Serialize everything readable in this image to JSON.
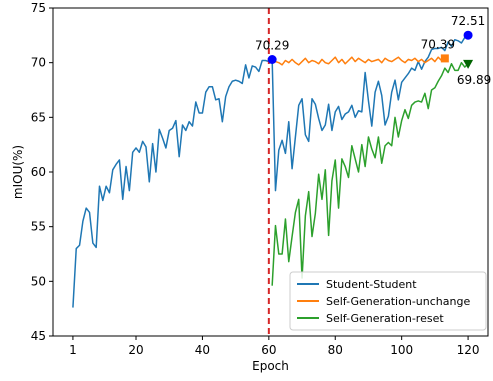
{
  "chart_data": {
    "type": "line",
    "xlabel": "Epoch",
    "ylabel": "mIOU(%)",
    "xlim": [
      -5,
      126
    ],
    "ylim": [
      45,
      75
    ],
    "xticks": [
      1,
      20,
      40,
      60,
      80,
      100,
      120
    ],
    "yticks": [
      45,
      50,
      55,
      60,
      65,
      70,
      75
    ],
    "grid": false,
    "legend_position": "lower-right",
    "vline": {
      "x": 60,
      "color": "#d62728",
      "style": "dashed"
    },
    "series": [
      {
        "name": "Student-Student",
        "color": "#1f77b4",
        "x": [
          1,
          2,
          3,
          4,
          5,
          6,
          7,
          8,
          9,
          10,
          11,
          12,
          13,
          14,
          15,
          16,
          17,
          18,
          19,
          20,
          21,
          22,
          23,
          24,
          25,
          26,
          27,
          28,
          29,
          30,
          31,
          32,
          33,
          34,
          35,
          36,
          37,
          38,
          39,
          40,
          41,
          42,
          43,
          44,
          45,
          46,
          47,
          48,
          49,
          50,
          51,
          52,
          53,
          54,
          55,
          56,
          57,
          58,
          59,
          60,
          61,
          62,
          63,
          64,
          65,
          66,
          67,
          68,
          69,
          70,
          71,
          72,
          73,
          74,
          75,
          76,
          77,
          78,
          79,
          80,
          81,
          82,
          83,
          84,
          85,
          86,
          87,
          88,
          89,
          90,
          91,
          92,
          93,
          94,
          95,
          96,
          97,
          98,
          99,
          100,
          101,
          102,
          103,
          104,
          105,
          106,
          107,
          108,
          109,
          110,
          111,
          112,
          113,
          114,
          115,
          116,
          117,
          118,
          119,
          120
        ],
        "y": [
          47.6,
          53.0,
          53.3,
          55.5,
          56.7,
          56.3,
          53.5,
          53.1,
          58.7,
          57.4,
          58.7,
          58.1,
          60.2,
          60.7,
          61.1,
          57.5,
          60.5,
          58.3,
          61.8,
          62.2,
          61.8,
          62.8,
          62.3,
          59.1,
          62.6,
          60.0,
          63.9,
          63.1,
          62.2,
          63.8,
          64.0,
          64.7,
          61.4,
          64.3,
          63.8,
          64.6,
          64.2,
          66.4,
          65.4,
          65.4,
          67.3,
          67.8,
          67.8,
          66.6,
          66.7,
          64.6,
          66.9,
          67.8,
          68.3,
          68.4,
          68.3,
          68.1,
          69.8,
          68.6,
          69.7,
          69.6,
          69.2,
          70.2,
          70.2,
          70.1,
          70.29,
          58.3,
          62.0,
          62.9,
          61.7,
          64.6,
          60.3,
          63.2,
          66.1,
          66.7,
          63.4,
          62.8,
          66.7,
          66.2,
          64.9,
          63.8,
          64.3,
          66.2,
          63.8,
          65.5,
          66.0,
          64.8,
          65.3,
          65.5,
          66.1,
          65.0,
          65.6,
          65.5,
          69.1,
          66.5,
          64.2,
          67.3,
          68.3,
          67.0,
          64.3,
          65.1,
          67.3,
          68.4,
          66.6,
          68.2,
          68.6,
          69.0,
          69.5,
          69.3,
          70.1,
          69.4,
          70.1,
          70.5,
          71.2,
          71.3,
          71.3,
          71.4,
          71.1,
          71.9,
          71.5,
          72.1,
          72.0,
          71.8,
          72.3,
          72.51
        ]
      },
      {
        "name": "Self-Generation-unchange",
        "color": "#ff7f0e",
        "x": [
          61,
          62,
          63,
          64,
          65,
          66,
          67,
          68,
          69,
          70,
          71,
          72,
          73,
          74,
          75,
          76,
          77,
          78,
          79,
          80,
          81,
          82,
          83,
          84,
          85,
          86,
          87,
          88,
          89,
          90,
          91,
          92,
          93,
          94,
          95,
          96,
          97,
          98,
          99,
          100,
          101,
          102,
          103,
          104,
          105,
          106,
          107,
          108,
          109,
          110,
          111,
          112,
          113
        ],
        "y": [
          70.29,
          70.1,
          70.0,
          69.8,
          70.2,
          70.0,
          70.3,
          70.0,
          69.8,
          70.1,
          70.4,
          70.0,
          70.2,
          70.1,
          69.9,
          70.3,
          70.0,
          69.9,
          70.2,
          70.5,
          70.0,
          70.3,
          69.9,
          70.2,
          70.5,
          70.1,
          70.4,
          70.2,
          70.0,
          70.3,
          70.1,
          70.2,
          70.3,
          70.0,
          70.4,
          70.2,
          70.1,
          70.3,
          70.5,
          70.2,
          70.0,
          70.3,
          70.2,
          70.4,
          70.1,
          70.3,
          70.0,
          70.2,
          70.4,
          70.1,
          70.5,
          70.2,
          70.39
        ]
      },
      {
        "name": "Self-Generation-reset",
        "color": "#2ca02c",
        "x": [
          61,
          62,
          63,
          64,
          65,
          66,
          67,
          68,
          69,
          70,
          71,
          72,
          73,
          74,
          75,
          76,
          77,
          78,
          79,
          80,
          81,
          82,
          83,
          84,
          85,
          86,
          87,
          88,
          89,
          90,
          91,
          92,
          93,
          94,
          95,
          96,
          97,
          98,
          99,
          100,
          101,
          102,
          103,
          104,
          105,
          106,
          107,
          108,
          109,
          110,
          111,
          112,
          113,
          114,
          115,
          116,
          117,
          118,
          119,
          120
        ],
        "y": [
          49.6,
          55.1,
          52.5,
          52.5,
          55.7,
          51.8,
          54.1,
          56.3,
          57.5,
          50.3,
          56.0,
          58.2,
          54.1,
          56.2,
          59.8,
          57.5,
          60.2,
          54.2,
          59.2,
          61.1,
          56.7,
          61.2,
          60.5,
          59.5,
          62.4,
          61.2,
          60.0,
          62.5,
          60.5,
          63.2,
          62.1,
          61.3,
          63.2,
          60.8,
          62.4,
          62.7,
          62.4,
          65.0,
          63.2,
          64.7,
          65.7,
          64.9,
          66.1,
          66.4,
          66.5,
          66.4,
          67.2,
          65.8,
          67.5,
          67.7,
          68.3,
          68.8,
          69.5,
          69.1,
          69.9,
          69.3,
          69.3,
          70.0,
          69.6,
          69.89
        ]
      }
    ],
    "annotations": [
      {
        "text": "70.29",
        "x": 61,
        "y": 70.29,
        "marker": "circle",
        "color": "#0000ff"
      },
      {
        "text": "72.51",
        "x": 120,
        "y": 72.51,
        "marker": "circle",
        "color": "#0000ff"
      },
      {
        "text": "70.39",
        "x": 113,
        "y": 70.39,
        "marker": "square",
        "color": "#ff7f0e"
      },
      {
        "text": "69.89",
        "x": 120,
        "y": 69.89,
        "marker": "triangle-down",
        "color": "#006400"
      }
    ]
  }
}
